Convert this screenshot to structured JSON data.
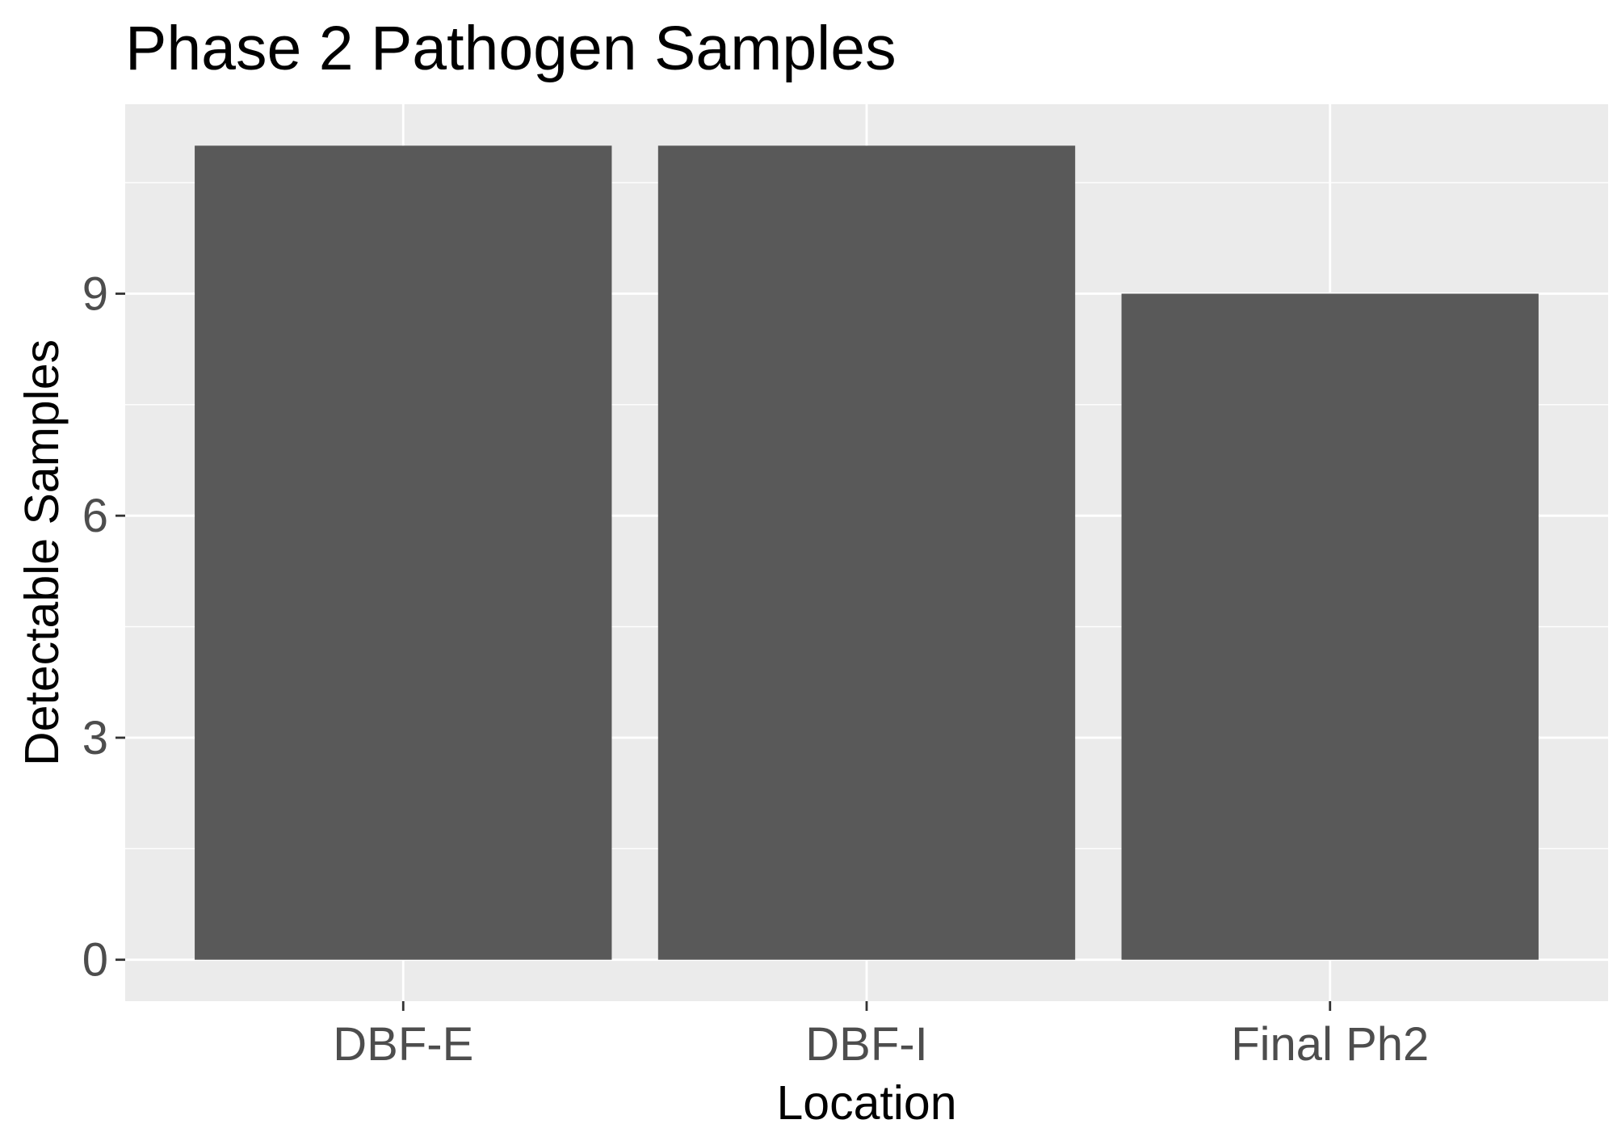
{
  "chart_data": {
    "type": "bar",
    "title": "Phase 2 Pathogen Samples",
    "xlabel": "Location",
    "ylabel": "Detectable Samples",
    "categories": [
      "DBF-E",
      "DBF-I",
      "Final Ph2"
    ],
    "values": [
      11,
      11,
      9
    ],
    "ylim": [
      -0.56,
      11.56
    ],
    "yticks": [
      0,
      3,
      6,
      9
    ],
    "grid": true,
    "legend": "none",
    "colors": {
      "bar": "#595959",
      "panel_background": "#ebebeb",
      "grid": "#ffffff",
      "tick_label": "#4d4d4d",
      "tick_mark": "#333333"
    }
  }
}
